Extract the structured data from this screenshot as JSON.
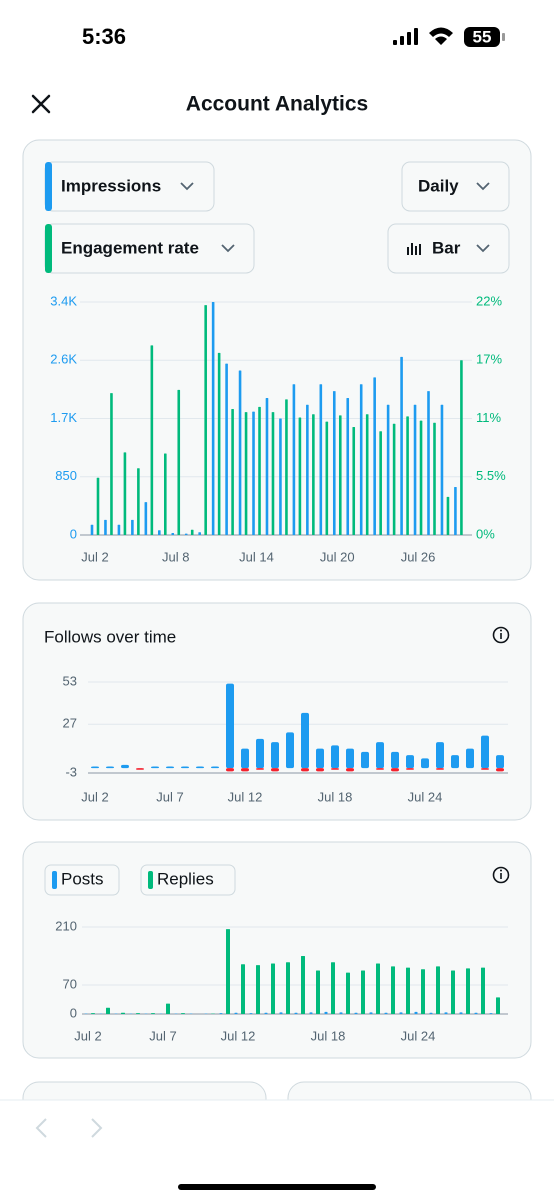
{
  "status": {
    "time": "5:36",
    "battery": "55"
  },
  "header": {
    "title": "Account Analytics"
  },
  "card1": {
    "metric1": "Impressions",
    "metric2": "Engagement rate",
    "period": "Daily",
    "style": "Bar"
  },
  "card2": {
    "title": "Follows over time"
  },
  "chart_data": [
    {
      "type": "bar",
      "categories": [
        "Jul 2",
        null,
        null,
        null,
        null,
        null,
        "Jul 8",
        null,
        null,
        null,
        null,
        null,
        "Jul 14",
        null,
        null,
        null,
        null,
        null,
        "Jul 20",
        null,
        null,
        null,
        null,
        null,
        "Jul 26",
        null,
        null,
        null
      ],
      "series": [
        {
          "color": "#1d9bf0",
          "values": [
            150,
            220,
            150,
            220,
            480,
            70,
            30,
            20,
            40,
            3400,
            2500,
            2400,
            1800,
            2000,
            1700,
            2200,
            1900,
            2200,
            2100,
            2000,
            2200,
            2300,
            1900,
            2600,
            1900,
            2100,
            1900,
            700
          ]
        },
        {
          "color": "#00ba7c",
          "axis": "y2",
          "values": [
            5.4,
            13.4,
            7.8,
            6.3,
            17.9,
            7.7,
            13.7,
            0.5,
            21.7,
            17.2,
            11.9,
            11.6,
            12.1,
            11.6,
            12.8,
            11.1,
            11.4,
            10.7,
            11.3,
            10.2,
            11.4,
            9.8,
            10.5,
            11.2,
            10.8,
            10.6,
            3.6,
            16.5
          ]
        }
      ],
      "ylim": [
        0,
        3400
      ],
      "yticks": [
        0,
        850,
        {
          "value": 1700,
          "label": "1.7K"
        },
        {
          "value": 2550,
          "label": "2.6K"
        },
        {
          "value": 3400,
          "label": "3.4K"
        }
      ],
      "y2lim": [
        0,
        22
      ],
      "y2ticks": [
        {
          "value": 0,
          "label": "0%"
        },
        {
          "value": 5.5,
          "label": "5.5%"
        },
        {
          "value": 11,
          "label": "11%"
        },
        {
          "value": 16.5,
          "label": "17%"
        },
        {
          "value": 22,
          "label": "22%"
        }
      ],
      "grid": true
    },
    {
      "type": "bar",
      "categories": [
        "Jul 2",
        null,
        null,
        null,
        null,
        "Jul 7",
        null,
        null,
        null,
        null,
        "Jul 12",
        null,
        null,
        null,
        null,
        null,
        "Jul 18",
        null,
        null,
        null,
        null,
        null,
        "Jul 24",
        null,
        null,
        null,
        null,
        null
      ],
      "series": [
        {
          "color": "#1d9bf0",
          "values": [
            1,
            1,
            2,
            0,
            1,
            1,
            1,
            1,
            1,
            52,
            12,
            18,
            16,
            22,
            34,
            12,
            14,
            12,
            10,
            16,
            10,
            8,
            6,
            16,
            8,
            12,
            20,
            8
          ]
        },
        {
          "color": "#f4212e",
          "values": [
            0,
            0,
            0,
            -1,
            0,
            0,
            0,
            0,
            0,
            -2,
            -2,
            -1,
            -2,
            0,
            -2,
            -2,
            -1,
            -2,
            0,
            -1,
            -2,
            -1,
            0,
            -1,
            0,
            0,
            -1,
            -2
          ]
        }
      ],
      "ylim": [
        -3,
        53
      ],
      "yticks": [
        -3,
        27,
        53
      ],
      "grid": true
    },
    {
      "type": "bar",
      "categories": [
        "Jul 2",
        null,
        null,
        null,
        null,
        "Jul 7",
        null,
        null,
        null,
        null,
        "Jul 12",
        null,
        null,
        null,
        null,
        null,
        "Jul 18",
        null,
        null,
        null,
        null,
        null,
        "Jul 24",
        null,
        null,
        null,
        null,
        null
      ],
      "series": [
        {
          "name": "Posts",
          "color": "#1d9bf0",
          "values": [
            1,
            1,
            1,
            1,
            1,
            1,
            1,
            1,
            1,
            2,
            3,
            2,
            3,
            4,
            3,
            4,
            5,
            4,
            3,
            4,
            3,
            4,
            5,
            3,
            4,
            4,
            3,
            2
          ]
        },
        {
          "name": "Replies",
          "color": "#00ba7c",
          "values": [
            2,
            15,
            3,
            2,
            2,
            25,
            2,
            0,
            1,
            205,
            120,
            118,
            122,
            125,
            140,
            105,
            125,
            100,
            105,
            122,
            115,
            112,
            108,
            115,
            105,
            110,
            112,
            40
          ]
        }
      ],
      "ylim": [
        0,
        210
      ],
      "yticks": [
        0,
        70,
        210
      ],
      "grid": true
    }
  ]
}
